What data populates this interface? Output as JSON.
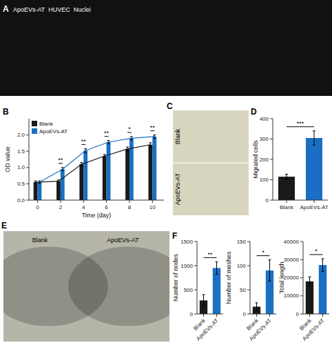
{
  "chart_data": [
    {
      "type": "image",
      "title": "A",
      "color": "#111111",
      "annotations": [
        {
          "text": "  ApoEVs-AT  HUVEC  Nuclei"
        }
      ]
    },
    {
      "type": "bar",
      "title": "B",
      "x": [
        0,
        2,
        4,
        6,
        8,
        10
      ],
      "series": [
        {
          "name": "Blank",
          "color": "#1a1a1a",
          "values": [
            0.55,
            0.58,
            1.1,
            1.35,
            1.57,
            1.7
          ],
          "errors": [
            0.04,
            0.04,
            0.05,
            0.05,
            0.06,
            0.06
          ]
        },
        {
          "name": "ApoEVs-AT",
          "color": "#1a6fc4",
          "values": [
            0.55,
            0.95,
            1.52,
            1.78,
            1.9,
            1.95
          ],
          "errors": [
            0.04,
            0.05,
            0.06,
            0.05,
            0.05,
            0.05
          ]
        }
      ],
      "xlabel": "Time (day)",
      "ylabel": "OD value",
      "xlim": [
        -0.75,
        11.0
      ],
      "xticks": [
        0,
        2,
        4,
        6,
        8,
        10
      ],
      "ylim": [
        0,
        2.5
      ],
      "yticks": [
        {
          "value": 0.0,
          "label": "0.0"
        },
        0.5,
        {
          "value": 1.0,
          "label": "1.0"
        },
        1.5,
        {
          "value": 2.0,
          "label": "2.0"
        }
      ],
      "legend": "upper left",
      "annotations": [
        {
          "x": 2,
          "text": "**"
        },
        {
          "x": 4,
          "text": "**"
        },
        {
          "x": 6,
          "text": "**"
        },
        {
          "x": 8,
          "text": "*"
        },
        {
          "x": 10,
          "text": "**"
        }
      ]
    },
    {
      "type": "image",
      "title": "C",
      "color": "#d8d5be",
      "annotations": [
        {
          "text": "Blank"
        },
        {
          "text": "ApoEVs-AT"
        }
      ]
    },
    {
      "type": "bar",
      "title": "D",
      "categories": [
        "Blank",
        "ApoEVs-AT"
      ],
      "values": [
        115,
        305
      ],
      "errors": [
        12,
        35
      ],
      "colors": [
        "#1a1a1a",
        "#1a6fc4"
      ],
      "ylabel": "Migrated cells",
      "ylim": [
        0,
        400
      ],
      "yticks": [
        0,
        100,
        200,
        300,
        400
      ],
      "annotations": [
        {
          "text": "***"
        }
      ]
    },
    {
      "type": "image",
      "title": "E",
      "color": "#b5b5a8",
      "annotations": [
        {
          "text": "Blank"
        },
        {
          "text": "ApoEVs-AT"
        }
      ]
    },
    {
      "type": "bar",
      "title": "F",
      "categories": [
        "Blank",
        "ApoEVs-AT"
      ],
      "values": [
        280,
        950
      ],
      "errors": [
        120,
        130
      ],
      "colors": [
        "#1a1a1a",
        "#1a6fc4"
      ],
      "ylabel": "Number of nodes",
      "ylim": [
        0,
        1500
      ],
      "yticks": [
        0,
        500,
        1000,
        1500
      ],
      "annotations": [
        {
          "text": "**"
        }
      ]
    },
    {
      "type": "bar",
      "categories": [
        "Blank",
        "ApoEVs-AT"
      ],
      "values": [
        15,
        90
      ],
      "errors": [
        8,
        22
      ],
      "colors": [
        "#1a1a1a",
        "#1a6fc4"
      ],
      "ylabel": "Number of meshes",
      "ylim": [
        0,
        150
      ],
      "yticks": [
        0,
        50,
        100,
        150
      ],
      "annotations": [
        {
          "text": "*"
        }
      ]
    },
    {
      "type": "bar",
      "categories": [
        "Blank",
        "ApoEVs-AT"
      ],
      "values": [
        18000,
        27000
      ],
      "errors": [
        2500,
        3500
      ],
      "colors": [
        "#1a1a1a",
        "#1a6fc4"
      ],
      "ylabel": "Total length",
      "ylim": [
        0,
        40000
      ],
      "yticks": [
        0,
        10000,
        20000,
        30000,
        40000
      ],
      "annotations": [
        {
          "text": "*"
        }
      ]
    }
  ]
}
